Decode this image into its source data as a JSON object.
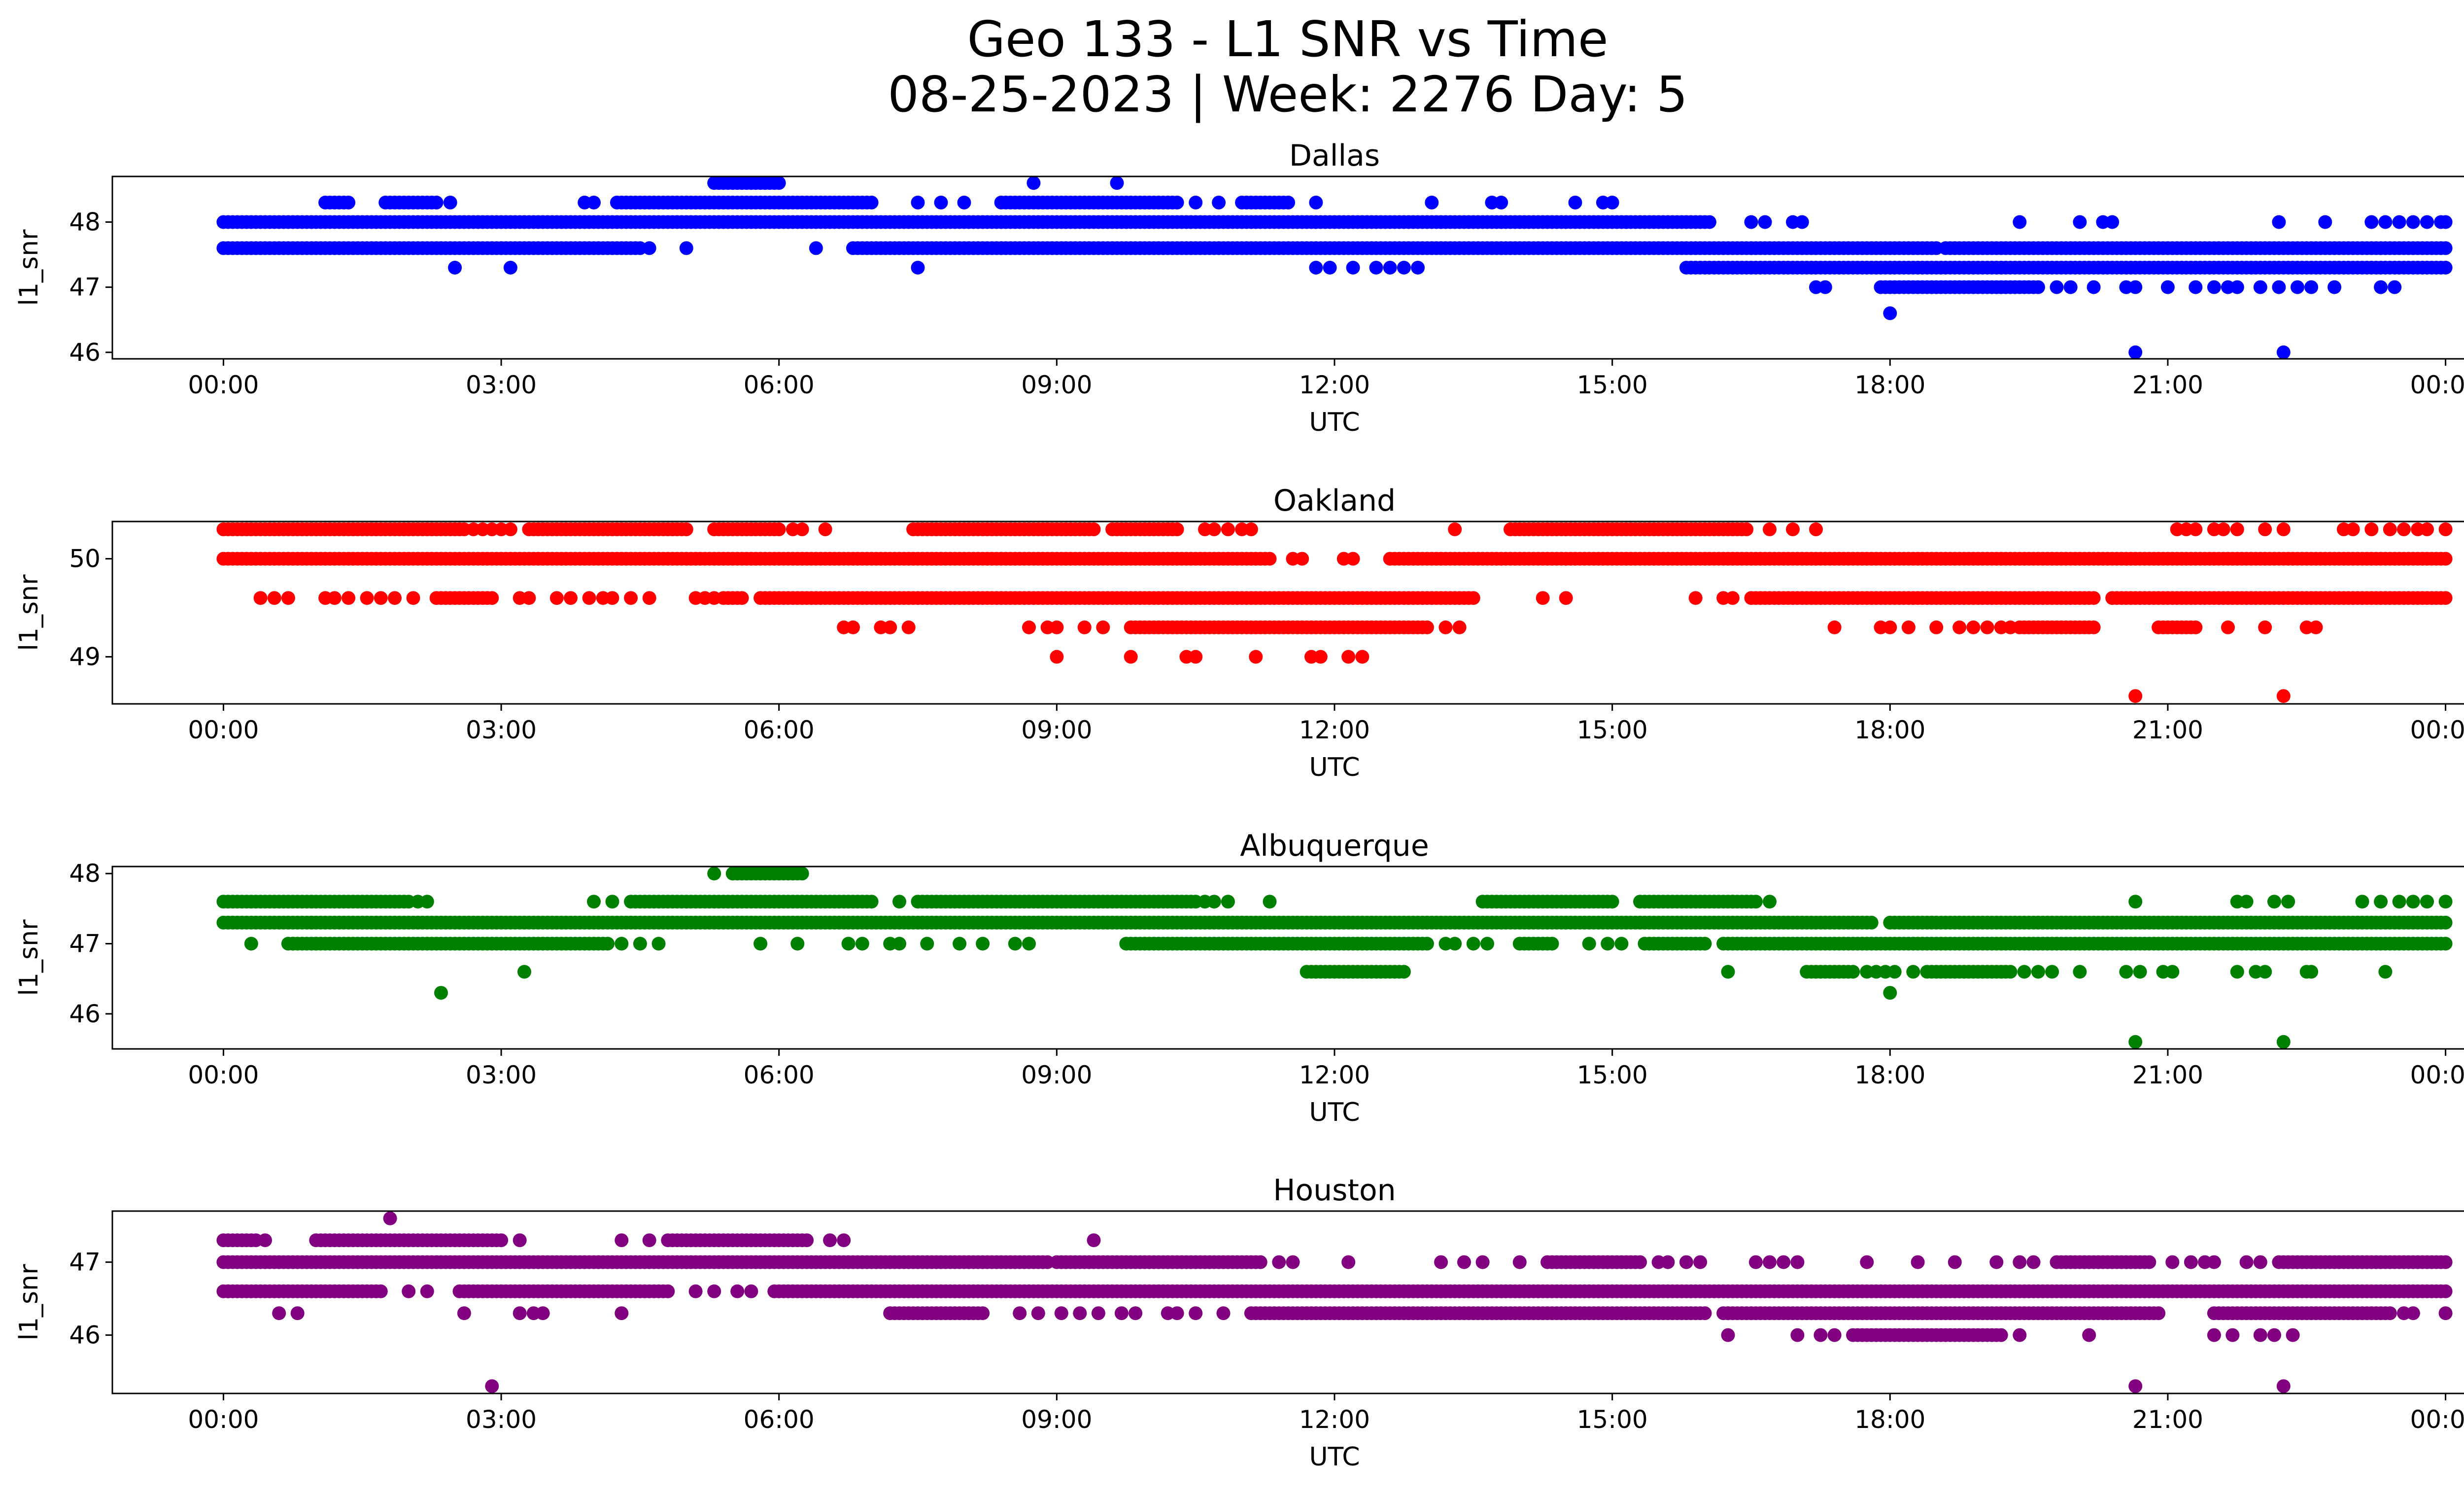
{
  "figure": {
    "title_line1": "Geo 133 - L1 SNR vs Time",
    "title_line2": "08-25-2023 | Week: 2276 Day: 5"
  },
  "chart_data": [
    {
      "type": "scatter",
      "title": "Dallas",
      "xlabel": "UTC",
      "ylabel": "l1_snr",
      "color": "#0000ff",
      "x_tick_labels": [
        "00:00",
        "03:00",
        "06:00",
        "09:00",
        "12:00",
        "15:00",
        "18:00",
        "21:00",
        "00:00"
      ],
      "xlim": [
        "00:00",
        "24:00"
      ],
      "y_ticks": [
        46,
        47,
        48
      ],
      "ylim": [
        45.9,
        48.7
      ],
      "grid": false,
      "levels": [
        {
          "y": 48.6,
          "ranges": [
            [
              5.3,
              6.0
            ]
          ],
          "points": [
            8.75,
            9.65
          ]
        },
        {
          "y": 48.3,
          "ranges": [
            [
              1.1,
              1.35
            ],
            [
              1.75,
              2.3
            ],
            [
              4.25,
              7.0
            ],
            [
              8.4,
              10.3
            ],
            [
              11.0,
              11.5
            ]
          ],
          "points": [
            2.45,
            3.9,
            4.0,
            7.5,
            7.75,
            8.0,
            10.5,
            10.75,
            11.8,
            13.05,
            13.7,
            13.8,
            14.6,
            14.9,
            15.0
          ]
        },
        {
          "y": 48.0,
          "ranges": [
            [
              0.0,
              16.05
            ]
          ],
          "points": [
            16.5,
            16.65,
            16.95,
            17.05,
            19.4,
            20.05,
            20.3,
            20.4,
            22.2,
            22.7,
            23.2,
            23.35,
            23.5,
            23.65,
            23.8,
            23.95,
            24.0
          ]
        },
        {
          "y": 47.6,
          "ranges": [
            [
              0.0,
              4.5
            ],
            [
              6.8,
              18.5
            ],
            [
              18.6,
              24.0
            ]
          ],
          "points": [
            4.6,
            5.0,
            6.4
          ]
        },
        {
          "y": 47.3,
          "ranges": [
            [
              15.8,
              24.0
            ]
          ],
          "points": [
            2.5,
            3.1,
            7.5,
            11.8,
            11.95,
            12.2,
            12.45,
            12.6,
            12.75,
            12.9
          ]
        },
        {
          "y": 47.0,
          "ranges": [
            [
              17.9,
              19.6
            ]
          ],
          "points": [
            17.2,
            17.3,
            19.8,
            19.95,
            20.2,
            20.55,
            20.65,
            21.0,
            21.3,
            21.5,
            21.65,
            21.75,
            22.0,
            22.2,
            22.4,
            22.55,
            22.8,
            23.3,
            23.45
          ]
        },
        {
          "y": 46.6,
          "ranges": [],
          "points": [
            18.0
          ]
        },
        {
          "y": 46.0,
          "ranges": [],
          "points": [
            20.65,
            22.25
          ]
        }
      ]
    },
    {
      "type": "scatter",
      "title": "Oakland",
      "xlabel": "UTC",
      "ylabel": "l1_snr",
      "color": "#ff0000",
      "x_tick_labels": [
        "00:00",
        "03:00",
        "06:00",
        "09:00",
        "12:00",
        "15:00",
        "18:00",
        "21:00",
        "00:00"
      ],
      "xlim": [
        "00:00",
        "24:00"
      ],
      "y_ticks": [
        49,
        50
      ],
      "ylim": [
        48.52,
        50.38
      ],
      "grid": false,
      "levels": [
        {
          "y": 50.3,
          "ranges": [
            [
              0.0,
              2.6
            ],
            [
              3.3,
              5.0
            ],
            [
              5.3,
              6.0
            ],
            [
              7.5,
              9.4
            ],
            [
              9.6,
              10.3
            ],
            [
              13.9,
              16.45
            ]
          ],
          "points": [
            2.7,
            2.8,
            2.9,
            3.0,
            3.1,
            6.15,
            6.25,
            6.5,
            7.45,
            10.6,
            10.7,
            10.85,
            11.0,
            11.1,
            13.3,
            16.7,
            16.95,
            17.2,
            21.1,
            21.2,
            21.3,
            21.5,
            21.6,
            21.75,
            22.05,
            22.25,
            22.9,
            23.0,
            23.2,
            23.4,
            23.55,
            23.7,
            23.8,
            24.0
          ]
        },
        {
          "y": 50.0,
          "ranges": [
            [
              0.0,
              11.3
            ],
            [
              12.6,
              24.0
            ]
          ],
          "points": [
            11.55,
            11.65,
            12.1,
            12.2
          ]
        },
        {
          "y": 49.6,
          "ranges": [
            [
              2.3,
              2.9
            ],
            [
              5.4,
              5.6
            ],
            [
              5.8,
              13.5
            ],
            [
              16.5,
              20.2
            ],
            [
              20.4,
              24.0
            ]
          ],
          "points": [
            0.4,
            0.55,
            0.7,
            1.1,
            1.2,
            1.35,
            1.55,
            1.7,
            1.85,
            2.05,
            3.2,
            3.3,
            3.6,
            3.75,
            3.95,
            4.1,
            4.2,
            4.4,
            4.6,
            5.1,
            5.2,
            5.3,
            14.25,
            14.5,
            15.9,
            16.2,
            16.3
          ]
        },
        {
          "y": 49.3,
          "ranges": [
            [
              9.8,
              13.0
            ],
            [
              20.9,
              21.3
            ],
            [
              19.45,
              20.2
            ]
          ],
          "points": [
            6.7,
            6.8,
            7.1,
            7.2,
            7.4,
            8.7,
            8.9,
            9.0,
            9.3,
            9.5,
            13.2,
            13.35,
            17.4,
            17.9,
            18.0,
            18.2,
            18.5,
            18.75,
            18.9,
            19.05,
            19.2,
            19.3,
            19.4,
            21.65,
            22.05,
            22.5,
            22.6
          ]
        },
        {
          "y": 49.0,
          "ranges": [],
          "points": [
            9.0,
            9.8,
            10.4,
            10.5,
            11.15,
            11.75,
            11.85,
            12.15,
            12.3
          ]
        },
        {
          "y": 48.6,
          "ranges": [],
          "points": [
            20.65,
            22.25
          ]
        }
      ]
    },
    {
      "type": "scatter",
      "title": "Albuquerque",
      "xlabel": "UTC",
      "ylabel": "l1_snr",
      "color": "#008000",
      "x_tick_labels": [
        "00:00",
        "03:00",
        "06:00",
        "09:00",
        "12:00",
        "15:00",
        "18:00",
        "21:00",
        "00:00"
      ],
      "xlim": [
        "00:00",
        "24:00"
      ],
      "y_ticks": [
        46,
        47,
        48
      ],
      "ylim": [
        45.5,
        48.1
      ],
      "grid": false,
      "levels": [
        {
          "y": 48.0,
          "ranges": [
            [
              5.5,
              6.25
            ]
          ],
          "points": [
            5.3
          ]
        },
        {
          "y": 47.6,
          "ranges": [
            [
              0.0,
              2.0
            ],
            [
              4.4,
              7.0
            ],
            [
              7.5,
              10.5
            ],
            [
              13.6,
              15.0
            ],
            [
              15.3,
              16.5
            ]
          ],
          "points": [
            2.1,
            2.2,
            4.0,
            4.2,
            7.3,
            10.6,
            10.7,
            10.85,
            11.3,
            16.3,
            16.45,
            16.55,
            16.7,
            20.65,
            21.75,
            21.85,
            22.15,
            22.3,
            23.1,
            23.3,
            23.5,
            23.65,
            23.8,
            24.0
          ]
        },
        {
          "y": 47.3,
          "ranges": [
            [
              0.0,
              17.8
            ],
            [
              18.0,
              24.0
            ]
          ],
          "points": []
        },
        {
          "y": 47.0,
          "ranges": [
            [
              0.7,
              4.15
            ],
            [
              9.75,
              13.0
            ],
            [
              14.0,
              14.35
            ],
            [
              15.35,
              16.0
            ],
            [
              16.2,
              24.0
            ]
          ],
          "points": [
            0.3,
            0.75,
            1.0,
            4.3,
            4.5,
            4.7,
            5.8,
            6.2,
            6.75,
            6.9,
            7.2,
            7.3,
            7.6,
            7.95,
            8.2,
            8.55,
            8.7,
            13.2,
            13.3,
            13.5,
            13.65,
            14.75,
            14.95,
            15.1
          ]
        },
        {
          "y": 46.6,
          "ranges": [
            [
              11.7,
              12.75
            ],
            [
              17.1,
              17.6
            ],
            [
              18.4,
              19.3
            ]
          ],
          "points": [
            3.25,
            16.25,
            17.75,
            17.85,
            17.95,
            18.05,
            18.25,
            19.45,
            19.6,
            19.75,
            20.05,
            20.55,
            20.7,
            20.95,
            21.05,
            21.75,
            21.95,
            22.05,
            22.5,
            22.55,
            23.35
          ]
        },
        {
          "y": 46.3,
          "ranges": [],
          "points": [
            2.35,
            18.0
          ]
        },
        {
          "y": 45.6,
          "ranges": [],
          "points": [
            20.65,
            22.25
          ]
        }
      ]
    },
    {
      "type": "scatter",
      "title": "Houston",
      "xlabel": "UTC",
      "ylabel": "l1_snr",
      "color": "#800080",
      "x_tick_labels": [
        "00:00",
        "03:00",
        "06:00",
        "09:00",
        "12:00",
        "15:00",
        "18:00",
        "21:00",
        "00:00"
      ],
      "xlim": [
        "00:00",
        "24:00"
      ],
      "y_ticks": [
        46,
        47
      ],
      "ylim": [
        45.2,
        47.7
      ],
      "grid": false,
      "levels": [
        {
          "y": 47.6,
          "ranges": [],
          "points": [
            1.8
          ]
        },
        {
          "y": 47.3,
          "ranges": [
            [
              0.0,
              0.35
            ],
            [
              1.0,
              3.0
            ],
            [
              4.8,
              6.3
            ]
          ],
          "points": [
            0.45,
            3.2,
            4.3,
            4.6,
            6.55,
            6.7,
            9.4
          ]
        },
        {
          "y": 47.0,
          "ranges": [
            [
              0.0,
              8.9
            ],
            [
              9.0,
              11.2
            ],
            [
              14.3,
              15.3
            ],
            [
              19.8,
              20.8
            ],
            [
              22.2,
              24.0
            ]
          ],
          "points": [
            11.4,
            11.55,
            12.15,
            13.15,
            13.4,
            13.6,
            14.0,
            15.5,
            15.6,
            15.8,
            15.95,
            16.55,
            16.7,
            16.85,
            17.0,
            17.75,
            18.3,
            18.7,
            19.15,
            19.4,
            19.55,
            21.05,
            21.25,
            21.4,
            21.5,
            21.85,
            22.0
          ]
        },
        {
          "y": 46.6,
          "ranges": [
            [
              0.0,
              1.7
            ],
            [
              2.55,
              4.8
            ],
            [
              5.95,
              24.0
            ]
          ],
          "points": [
            0.05,
            2.0,
            2.2,
            5.1,
            5.3,
            5.55,
            5.7
          ]
        },
        {
          "y": 46.3,
          "ranges": [
            [
              7.2,
              8.2
            ],
            [
              11.1,
              16.0
            ],
            [
              16.2,
              20.9
            ],
            [
              21.5,
              23.4
            ]
          ],
          "points": [
            0.6,
            0.8,
            2.6,
            3.2,
            3.35,
            3.45,
            4.3,
            8.6,
            8.8,
            9.05,
            9.25,
            9.45,
            9.7,
            9.85,
            10.2,
            10.3,
            10.5,
            10.8,
            16.25,
            23.55,
            23.65,
            24.0
          ]
        },
        {
          "y": 46.0,
          "ranges": [
            [
              17.6,
              19.2
            ]
          ],
          "points": [
            16.25,
            17.0,
            17.25,
            17.4,
            19.4,
            20.15,
            21.5,
            21.7,
            22.0,
            22.15,
            22.35
          ]
        },
        {
          "y": 45.3,
          "ranges": [],
          "points": [
            2.9,
            20.65,
            22.25
          ]
        }
      ]
    }
  ]
}
